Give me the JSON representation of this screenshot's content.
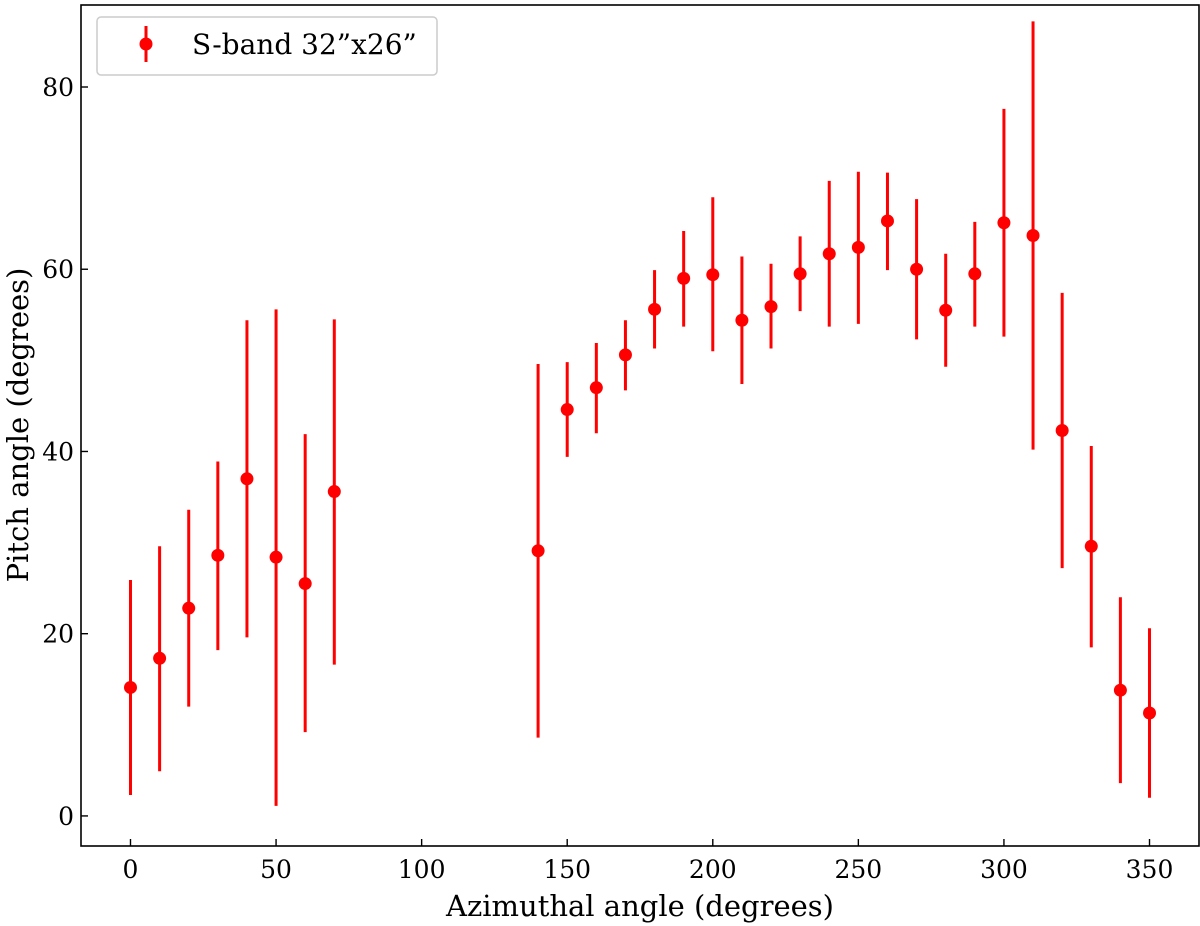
{
  "chart_data": {
    "type": "scatter",
    "xlabel": "Azimuthal angle (degrees)",
    "ylabel": "Pitch angle (degrees)",
    "xlim": [
      -17,
      367
    ],
    "ylim": [
      -3.3,
      89
    ],
    "xticks": [
      0,
      50,
      100,
      150,
      200,
      250,
      300,
      350
    ],
    "yticks": [
      0,
      20,
      40,
      60,
      80
    ],
    "grid": false,
    "legend_position": "top-left",
    "series": [
      {
        "name": "S-band 32”x26”",
        "color": "#ff0000",
        "marker": "circle",
        "points": [
          {
            "x": 0,
            "y": 14.1,
            "ylo": 2.3,
            "yhi": 25.9
          },
          {
            "x": 10,
            "y": 17.3,
            "ylo": 4.9,
            "yhi": 29.6
          },
          {
            "x": 20,
            "y": 22.8,
            "ylo": 12.0,
            "yhi": 33.6
          },
          {
            "x": 30,
            "y": 28.6,
            "ylo": 18.2,
            "yhi": 38.9
          },
          {
            "x": 40,
            "y": 37.0,
            "ylo": 19.6,
            "yhi": 54.4
          },
          {
            "x": 50,
            "y": 28.4,
            "ylo": 1.1,
            "yhi": 55.6
          },
          {
            "x": 60,
            "y": 25.5,
            "ylo": 9.2,
            "yhi": 41.9
          },
          {
            "x": 70,
            "y": 35.6,
            "ylo": 16.6,
            "yhi": 54.5
          },
          {
            "x": 140,
            "y": 29.1,
            "ylo": 8.6,
            "yhi": 49.6
          },
          {
            "x": 150,
            "y": 44.6,
            "ylo": 39.4,
            "yhi": 49.8
          },
          {
            "x": 160,
            "y": 47.0,
            "ylo": 42.0,
            "yhi": 51.9
          },
          {
            "x": 170,
            "y": 50.6,
            "ylo": 46.7,
            "yhi": 54.4
          },
          {
            "x": 180,
            "y": 55.6,
            "ylo": 51.3,
            "yhi": 59.9
          },
          {
            "x": 190,
            "y": 59.0,
            "ylo": 53.7,
            "yhi": 64.2
          },
          {
            "x": 200,
            "y": 59.4,
            "ylo": 51.0,
            "yhi": 67.9
          },
          {
            "x": 210,
            "y": 54.4,
            "ylo": 47.4,
            "yhi": 61.4
          },
          {
            "x": 220,
            "y": 55.9,
            "ylo": 51.3,
            "yhi": 60.6
          },
          {
            "x": 230,
            "y": 59.5,
            "ylo": 55.4,
            "yhi": 63.6
          },
          {
            "x": 240,
            "y": 61.7,
            "ylo": 53.7,
            "yhi": 69.7
          },
          {
            "x": 250,
            "y": 62.4,
            "ylo": 54.0,
            "yhi": 70.7
          },
          {
            "x": 260,
            "y": 65.3,
            "ylo": 59.9,
            "yhi": 70.6
          },
          {
            "x": 270,
            "y": 60.0,
            "ylo": 52.3,
            "yhi": 67.7
          },
          {
            "x": 280,
            "y": 55.5,
            "ylo": 49.3,
            "yhi": 61.7
          },
          {
            "x": 290,
            "y": 59.5,
            "ylo": 53.7,
            "yhi": 65.2
          },
          {
            "x": 300,
            "y": 65.1,
            "ylo": 52.6,
            "yhi": 77.6
          },
          {
            "x": 310,
            "y": 63.7,
            "ylo": 40.2,
            "yhi": 87.2
          },
          {
            "x": 320,
            "y": 42.3,
            "ylo": 27.2,
            "yhi": 57.4
          },
          {
            "x": 330,
            "y": 29.6,
            "ylo": 18.5,
            "yhi": 40.6
          },
          {
            "x": 340,
            "y": 13.8,
            "ylo": 3.6,
            "yhi": 24.0
          },
          {
            "x": 350,
            "y": 11.3,
            "ylo": 2.0,
            "yhi": 20.6
          }
        ]
      }
    ]
  }
}
